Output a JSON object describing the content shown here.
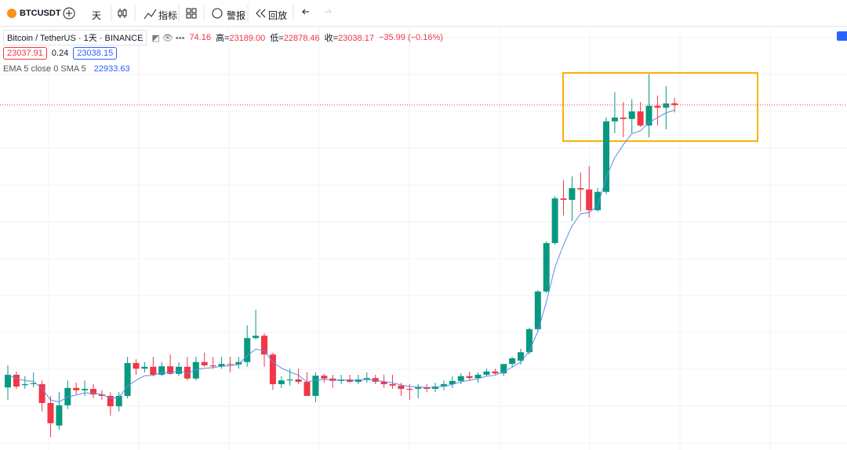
{
  "toolbar": {
    "symbol": "BTCUSDT",
    "interval": "天",
    "indicators": "指标",
    "alerts": "警报",
    "replay": "回放"
  },
  "legend": {
    "title": "Bitcoin / TetherUS · 1天 · BINANCE",
    "open_value": "74.16",
    "high_label": "高=",
    "high_value": "23189.00",
    "low_label": "低=",
    "low_value": "22878.46",
    "close_label": "收=",
    "close_value": "23038.17",
    "change": "−35.99 (−0.16%)",
    "bid": "23037.91",
    "spread": "0.24",
    "ask": "23038.15",
    "indicator": "EMA 5 close 0 SMA 5",
    "indicator_value": "22933.63"
  },
  "chart_data": {
    "type": "candlestick",
    "up_color": "#089981",
    "down_color": "#f23645",
    "ylim": [
      15700,
      24720
    ],
    "open": [
      17030,
      17300,
      17080,
      17100,
      17100,
      16700,
      16220,
      16650,
      17020,
      16970,
      17000,
      16880,
      16850,
      16630,
      16850,
      17550,
      17430,
      17470,
      17300,
      17480,
      17320,
      17470,
      17220,
      17570,
      17500,
      17480,
      17530,
      17520,
      17570,
      18080,
      18130,
      17730,
      17100,
      17180,
      17200,
      17150,
      16850,
      17280,
      17220,
      17170,
      17200,
      17150,
      17200,
      17230,
      17150,
      17100,
      17070,
      17000,
      17000,
      17030,
      17000,
      17050,
      17100,
      17170,
      17270,
      17230,
      17300,
      17370,
      17330,
      17530,
      17600,
      17780,
      18270,
      19070,
      20100,
      21050,
      21020,
      21270,
      21240,
      20800,
      21190,
      22690,
      22770,
      22740,
      22900,
      22600,
      23020,
      22980,
      23074.16
    ],
    "high": [
      17500,
      17370,
      17270,
      17350,
      17180,
      16850,
      16930,
      17180,
      17130,
      17180,
      17100,
      16970,
      16930,
      16930,
      17680,
      17630,
      17570,
      17680,
      17570,
      17730,
      17570,
      17680,
      17680,
      17770,
      17680,
      17680,
      17680,
      17680,
      18350,
      18680,
      18180,
      17770,
      17270,
      17430,
      17430,
      17350,
      17350,
      17320,
      17300,
      17300,
      17300,
      17300,
      17350,
      17300,
      17300,
      17300,
      17130,
      17100,
      17100,
      17100,
      17130,
      17180,
      17270,
      17330,
      17370,
      17350,
      17430,
      17430,
      17520,
      17680,
      17850,
      18300,
      19100,
      20140,
      21100,
      21440,
      21520,
      21600,
      21740,
      21270,
      22770,
      23310,
      23100,
      23160,
      23100,
      23690,
      23240,
      23440,
      23189
    ],
    "low": [
      16770,
      17000,
      17000,
      17030,
      16520,
      15970,
      16130,
      16570,
      16880,
      16850,
      16800,
      16770,
      16430,
      16520,
      16800,
      17300,
      17350,
      17270,
      17270,
      17300,
      17270,
      17180,
      17180,
      17470,
      17430,
      17430,
      17350,
      17430,
      17470,
      18050,
      17470,
      16980,
      17020,
      17070,
      17100,
      16850,
      16720,
      17130,
      17020,
      17100,
      17130,
      17100,
      17130,
      17100,
      17020,
      17000,
      16850,
      16770,
      16800,
      16930,
      16930,
      16970,
      17020,
      17100,
      17180,
      17130,
      17270,
      17300,
      17270,
      17470,
      17520,
      17730,
      18230,
      19040,
      20070,
      20690,
      20570,
      20770,
      20640,
      20770,
      21140,
      22440,
      22350,
      22440,
      22570,
      22350,
      22600,
      22520,
      22878.46
    ],
    "close": [
      17300,
      17050,
      17100,
      17120,
      16700,
      16270,
      16650,
      17020,
      16970,
      17000,
      16880,
      16850,
      16630,
      16850,
      17550,
      17430,
      17470,
      17300,
      17480,
      17320,
      17470,
      17220,
      17570,
      17500,
      17480,
      17530,
      17520,
      17570,
      18080,
      18130,
      17730,
      17100,
      17180,
      17200,
      17150,
      16850,
      17280,
      17220,
      17170,
      17200,
      17150,
      17200,
      17230,
      17150,
      17100,
      17070,
      17000,
      16980,
      17030,
      17000,
      17050,
      17100,
      17170,
      17270,
      17230,
      17300,
      17370,
      17330,
      17530,
      17650,
      17780,
      18270,
      19070,
      20100,
      21050,
      21020,
      21270,
      21240,
      20800,
      21190,
      22690,
      22770,
      22740,
      22900,
      22600,
      23020,
      22980,
      23070,
      23038.17
    ],
    "ema": {
      "color": "#5b8de8",
      "values": [
        17300,
        17217,
        17178,
        17159,
        17006,
        16761,
        16724,
        16823,
        16872,
        16915,
        16903,
        16885,
        16800,
        16817,
        17061,
        17184,
        17279,
        17286,
        17351,
        17341,
        17384,
        17329,
        17409,
        17439,
        17453,
        17479,
        17493,
        17519,
        17706,
        17847,
        17808,
        17572,
        17441,
        17361,
        17291,
        17144,
        17189,
        17199,
        17189,
        17193,
        17179,
        17186,
        17201,
        17184,
        17156,
        17127,
        17085,
        17050,
        17043,
        17029,
        17036,
        17057,
        17095,
        17153,
        17179,
        17219,
        17269,
        17289,
        17369,
        17463,
        17569,
        17803,
        18225,
        18850,
        19583,
        20062,
        20465,
        20723,
        20749,
        20896,
        21494,
        21919,
        22193,
        22429,
        22486,
        22664,
        22769,
        22869,
        22930
      ]
    }
  }
}
